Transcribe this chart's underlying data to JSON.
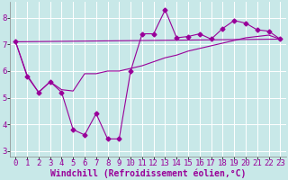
{
  "background_color": "#c8e8e8",
  "grid_color": "#ffffff",
  "line_color": "#990099",
  "xlabel": "Windchill (Refroidissement éolien,°C)",
  "xlim": [
    -0.5,
    23.5
  ],
  "ylim": [
    2.8,
    8.6
  ],
  "yticks": [
    3,
    4,
    5,
    6,
    7,
    8
  ],
  "xticks": [
    0,
    1,
    2,
    3,
    4,
    5,
    6,
    7,
    8,
    9,
    10,
    11,
    12,
    13,
    14,
    15,
    16,
    17,
    18,
    19,
    20,
    21,
    22,
    23
  ],
  "series1_x": [
    0,
    1,
    2,
    3,
    4,
    5,
    6,
    7,
    8,
    9,
    10,
    11,
    12,
    13,
    14,
    15,
    16,
    17,
    18,
    19,
    20,
    21,
    22,
    23
  ],
  "series1_y": [
    7.1,
    5.8,
    5.2,
    5.6,
    5.2,
    3.8,
    3.6,
    4.4,
    3.45,
    3.45,
    6.0,
    7.4,
    7.4,
    8.3,
    7.25,
    7.3,
    7.4,
    7.2,
    7.6,
    7.9,
    7.8,
    7.55,
    7.5,
    7.2
  ],
  "series2_x": [
    0,
    1,
    2,
    3,
    4,
    5,
    6,
    7,
    8,
    9,
    10,
    11,
    12,
    13,
    14,
    15,
    16,
    17,
    18,
    19,
    20,
    21,
    22,
    23
  ],
  "series2_y": [
    7.1,
    5.85,
    5.2,
    5.6,
    5.3,
    5.25,
    5.9,
    5.9,
    6.0,
    6.0,
    6.1,
    6.2,
    6.35,
    6.5,
    6.6,
    6.75,
    6.85,
    6.95,
    7.05,
    7.15,
    7.25,
    7.3,
    7.35,
    7.2
  ],
  "series3_x": [
    0,
    23
  ],
  "series3_y": [
    7.1,
    7.2
  ],
  "font_family": "monospace",
  "xlabel_fontsize": 7,
  "tick_fontsize": 6.5,
  "figsize": [
    3.2,
    2.0
  ],
  "dpi": 100
}
